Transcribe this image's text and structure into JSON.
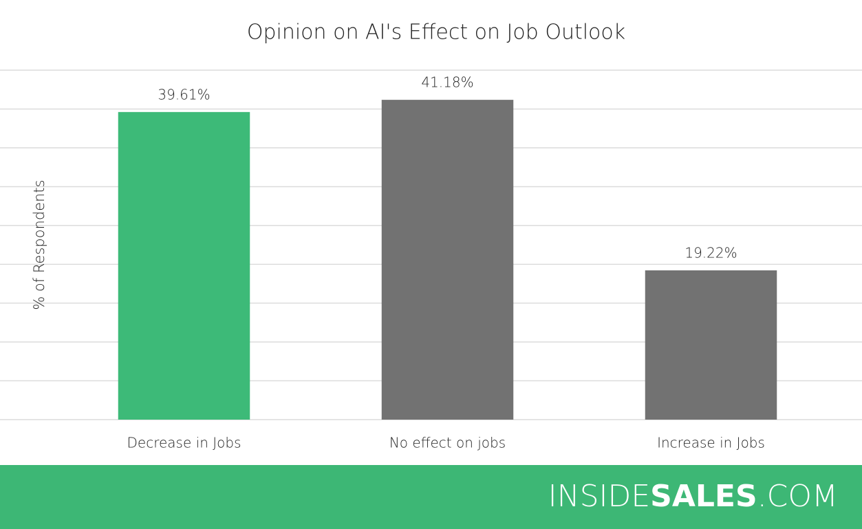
{
  "chart_data": {
    "type": "bar",
    "title": "Opinion on AI's Effect on Job Outlook",
    "y_label": "% of Respondents",
    "categories": [
      "Decrease in Jobs",
      "No effect on jobs",
      "Increase in Jobs"
    ],
    "values": [
      39.61,
      41.18,
      19.22
    ],
    "value_labels": [
      "39.61%",
      "41.18%",
      "19.22%"
    ],
    "colors": [
      "#3dba78",
      "#727272",
      "#727272"
    ],
    "ylim": [
      0,
      45
    ],
    "yticks": [
      0,
      5,
      10,
      15,
      20,
      25,
      30,
      35,
      40,
      45
    ],
    "grid": true
  },
  "footer": {
    "brand": [
      "INSIDE",
      "SALES",
      ".COM"
    ],
    "color": "#3db775"
  }
}
